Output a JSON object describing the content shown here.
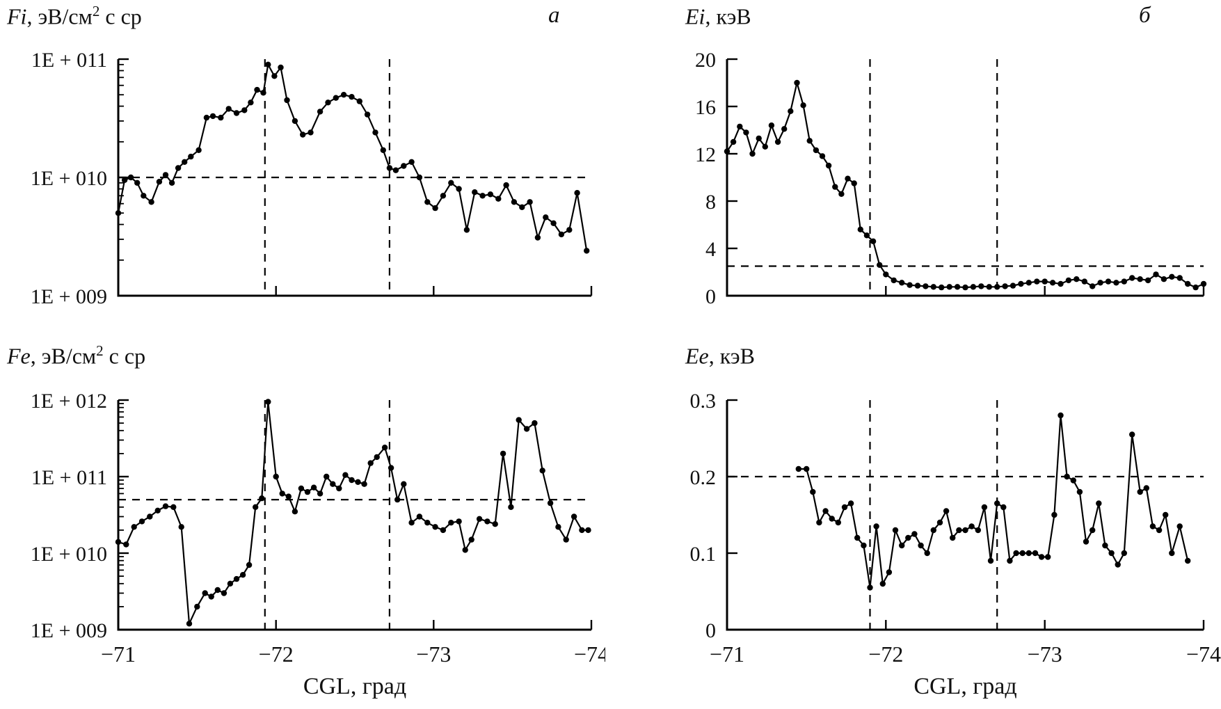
{
  "figure": {
    "background": "#ffffff",
    "line_color": "#000000"
  },
  "chart_data": [
    {
      "id": "fi",
      "type": "line",
      "title_var": "Fi",
      "title_unit": ", эВ/см",
      "title_sup": "2",
      "title_tail": " с ср",
      "panel_letter": "а",
      "yscale": "log",
      "ylim": [
        1000000000.0,
        100000000000.0
      ],
      "yticks": [
        1000000000.0,
        10000000000.0,
        100000000000.0
      ],
      "ytick_labels": [
        "1E + 009",
        "1E + 010",
        "1E + 011"
      ],
      "xlim": [
        -71,
        -74
      ],
      "xticks": [
        -71,
        -72,
        -73,
        -74
      ],
      "xtick_labels": [
        "−71",
        "−72",
        "−73",
        "−74"
      ],
      "show_xtick_labels": false,
      "xlabel": "",
      "hline": 10000000000.0,
      "vlines": [
        -71.93,
        -72.72
      ],
      "x": [
        -71.0,
        -71.04,
        -71.08,
        -71.12,
        -71.16,
        -71.21,
        -71.26,
        -71.3,
        -71.34,
        -71.38,
        -71.42,
        -71.46,
        -71.51,
        -71.56,
        -71.6,
        -71.65,
        -71.7,
        -71.75,
        -71.8,
        -71.84,
        -71.88,
        -71.92,
        -71.95,
        -71.99,
        -72.03,
        -72.07,
        -72.12,
        -72.17,
        -72.22,
        -72.28,
        -72.33,
        -72.38,
        -72.43,
        -72.48,
        -72.53,
        -72.58,
        -72.63,
        -72.68,
        -72.72,
        -72.76,
        -72.81,
        -72.86,
        -72.91,
        -72.96,
        -73.01,
        -73.06,
        -73.11,
        -73.16,
        -73.21,
        -73.26,
        -73.31,
        -73.36,
        -73.41,
        -73.46,
        -73.51,
        -73.56,
        -73.61,
        -73.66,
        -73.71,
        -73.76,
        -73.81,
        -73.86,
        -73.91,
        -73.97
      ],
      "y": [
        5000000000.0,
        9500000000.0,
        10000000000.0,
        9000000000.0,
        7000000000.0,
        6200000000.0,
        9200000000.0,
        10500000000.0,
        9000000000.0,
        12000000000.0,
        13500000000.0,
        15000000000.0,
        17000000000.0,
        32000000000.0,
        33000000000.0,
        32000000000.0,
        38000000000.0,
        35000000000.0,
        37000000000.0,
        43000000000.0,
        55000000000.0,
        52000000000.0,
        90000000000.0,
        72000000000.0,
        85000000000.0,
        45000000000.0,
        30000000000.0,
        23000000000.0,
        24000000000.0,
        36000000000.0,
        43000000000.0,
        47000000000.0,
        50000000000.0,
        48000000000.0,
        44000000000.0,
        34000000000.0,
        24000000000.0,
        17000000000.0,
        12000000000.0,
        11500000000.0,
        12500000000.0,
        13500000000.0,
        10000000000.0,
        6200000000.0,
        5500000000.0,
        7000000000.0,
        9000000000.0,
        8000000000.0,
        3600000000.0,
        7500000000.0,
        7000000000.0,
        7200000000.0,
        6600000000.0,
        8600000000.0,
        6200000000.0,
        5600000000.0,
        6200000000.0,
        3100000000.0,
        4600000000.0,
        4100000000.0,
        3300000000.0,
        3600000000.0,
        7400000000.0,
        2400000000.0
      ]
    },
    {
      "id": "ei",
      "type": "line",
      "title_var": "Ei",
      "title_unit": ", кэВ",
      "title_sup": "",
      "title_tail": "",
      "panel_letter": "б",
      "yscale": "linear",
      "ylim": [
        0,
        20
      ],
      "yticks": [
        0,
        4,
        8,
        12,
        16,
        20
      ],
      "ytick_labels": [
        "0",
        "4",
        "8",
        "12",
        "16",
        "20"
      ],
      "xlim": [
        -71,
        -74
      ],
      "xticks": [
        -71,
        -72,
        -73,
        -74
      ],
      "xtick_labels": [
        "−71",
        "−72",
        "−73",
        "−74"
      ],
      "show_xtick_labels": false,
      "xlabel": "",
      "hline": 2.5,
      "vlines": [
        -71.9,
        -72.7
      ],
      "x": [
        -71.0,
        -71.04,
        -71.08,
        -71.12,
        -71.16,
        -71.2,
        -71.24,
        -71.28,
        -71.32,
        -71.36,
        -71.4,
        -71.44,
        -71.48,
        -71.52,
        -71.56,
        -71.6,
        -71.64,
        -71.68,
        -71.72,
        -71.76,
        -71.8,
        -71.84,
        -71.88,
        -71.92,
        -71.96,
        -72.0,
        -72.05,
        -72.1,
        -72.15,
        -72.2,
        -72.25,
        -72.3,
        -72.35,
        -72.4,
        -72.45,
        -72.5,
        -72.55,
        -72.6,
        -72.65,
        -72.7,
        -72.75,
        -72.8,
        -72.85,
        -72.9,
        -72.95,
        -73.0,
        -73.05,
        -73.1,
        -73.15,
        -73.2,
        -73.25,
        -73.3,
        -73.35,
        -73.4,
        -73.45,
        -73.5,
        -73.55,
        -73.6,
        -73.65,
        -73.7,
        -73.75,
        -73.8,
        -73.85,
        -73.9,
        -73.95,
        -74.0
      ],
      "y": [
        12.2,
        13.0,
        14.3,
        13.8,
        12.0,
        13.3,
        12.6,
        14.4,
        13.0,
        14.1,
        15.6,
        18.0,
        16.1,
        13.1,
        12.3,
        11.8,
        11.0,
        9.2,
        8.6,
        9.9,
        9.5,
        5.6,
        5.1,
        4.6,
        2.6,
        1.8,
        1.3,
        1.1,
        0.9,
        0.85,
        0.8,
        0.75,
        0.7,
        0.75,
        0.75,
        0.7,
        0.75,
        0.8,
        0.75,
        0.75,
        0.8,
        0.85,
        1.0,
        1.1,
        1.2,
        1.2,
        1.1,
        1.0,
        1.3,
        1.4,
        1.2,
        0.8,
        1.1,
        1.2,
        1.1,
        1.2,
        1.5,
        1.4,
        1.3,
        1.8,
        1.4,
        1.6,
        1.5,
        1.0,
        0.7,
        1.0
      ]
    },
    {
      "id": "fe",
      "type": "line",
      "title_var": "Fe",
      "title_unit": ", эВ/см",
      "title_sup": "2",
      "title_tail": " с ср",
      "yscale": "log",
      "ylim": [
        1000000000.0,
        1000000000000.0
      ],
      "yticks": [
        1000000000.0,
        10000000000.0,
        100000000000.0,
        1000000000000.0
      ],
      "ytick_labels": [
        "1E + 009",
        "1E + 010",
        "1E + 011",
        "1E + 012"
      ],
      "xlim": [
        -71,
        -74
      ],
      "xticks": [
        -71,
        -72,
        -73,
        -74
      ],
      "xtick_labels": [
        "−71",
        "−72",
        "−73",
        "−74"
      ],
      "show_xtick_labels": true,
      "xlabel": "CGL, град",
      "hline": 50000000000.0,
      "vlines": [
        -71.93,
        -72.72
      ],
      "x": [
        -71.0,
        -71.05,
        -71.1,
        -71.15,
        -71.2,
        -71.25,
        -71.3,
        -71.35,
        -71.4,
        -71.45,
        -71.5,
        -71.55,
        -71.59,
        -71.63,
        -71.67,
        -71.71,
        -71.75,
        -71.79,
        -71.83,
        -71.87,
        -71.91,
        -71.95,
        -72.0,
        -72.04,
        -72.08,
        -72.12,
        -72.16,
        -72.2,
        -72.24,
        -72.28,
        -72.32,
        -72.36,
        -72.4,
        -72.44,
        -72.48,
        -72.52,
        -72.56,
        -72.6,
        -72.64,
        -72.69,
        -72.73,
        -72.77,
        -72.81,
        -72.86,
        -72.91,
        -72.96,
        -73.01,
        -73.06,
        -73.11,
        -73.16,
        -73.2,
        -73.24,
        -73.29,
        -73.34,
        -73.39,
        -73.44,
        -73.49,
        -73.54,
        -73.59,
        -73.64,
        -73.69,
        -73.74,
        -73.79,
        -73.84,
        -73.89,
        -73.94,
        -73.98
      ],
      "y": [
        14000000000.0,
        13000000000.0,
        22000000000.0,
        26000000000.0,
        30000000000.0,
        36000000000.0,
        41000000000.0,
        40000000000.0,
        22000000000.0,
        1200000000.0,
        2000000000.0,
        3000000000.0,
        2700000000.0,
        3300000000.0,
        3000000000.0,
        4000000000.0,
        4600000000.0,
        5200000000.0,
        7000000000.0,
        40000000000.0,
        52000000000.0,
        950000000000.0,
        100000000000.0,
        60000000000.0,
        55000000000.0,
        35000000000.0,
        70000000000.0,
        63000000000.0,
        72000000000.0,
        60000000000.0,
        100000000000.0,
        80000000000.0,
        70000000000.0,
        105000000000.0,
        90000000000.0,
        85000000000.0,
        80000000000.0,
        150000000000.0,
        180000000000.0,
        240000000000.0,
        130000000000.0,
        50000000000.0,
        80000000000.0,
        25000000000.0,
        30000000000.0,
        25000000000.0,
        22000000000.0,
        20000000000.0,
        25000000000.0,
        26000000000.0,
        11000000000.0,
        15000000000.0,
        28000000000.0,
        26000000000.0,
        24000000000.0,
        200000000000.0,
        40000000000.0,
        550000000000.0,
        420000000000.0,
        500000000000.0,
        120000000000.0,
        45000000000.0,
        22000000000.0,
        15000000000.0,
        30000000000.0,
        20000000000.0,
        20000000000.0
      ]
    },
    {
      "id": "ee",
      "type": "line",
      "title_var": "Ee",
      "title_unit": ", кэВ",
      "title_sup": "",
      "title_tail": "",
      "yscale": "linear",
      "ylim": [
        0,
        0.3
      ],
      "yticks": [
        0,
        0.1,
        0.2,
        0.3
      ],
      "ytick_labels": [
        "0",
        "0.1",
        "0.2",
        "0.3"
      ],
      "xlim": [
        -71,
        -74
      ],
      "xticks": [
        -71,
        -72,
        -73,
        -74
      ],
      "xtick_labels": [
        "−71",
        "−72",
        "−73",
        "−74"
      ],
      "show_xtick_labels": true,
      "xlabel": "CGL, град",
      "hline": 0.2,
      "vlines": [
        -71.9,
        -72.7
      ],
      "x": [
        -71.45,
        -71.5,
        -71.54,
        -71.58,
        -71.62,
        -71.66,
        -71.7,
        -71.74,
        -71.78,
        -71.82,
        -71.86,
        -71.9,
        -71.94,
        -71.98,
        -72.02,
        -72.06,
        -72.1,
        -72.14,
        -72.18,
        -72.22,
        -72.26,
        -72.3,
        -72.34,
        -72.38,
        -72.42,
        -72.46,
        -72.5,
        -72.54,
        -72.58,
        -72.62,
        -72.66,
        -72.7,
        -72.74,
        -72.78,
        -72.82,
        -72.86,
        -72.9,
        -72.94,
        -72.98,
        -73.02,
        -73.06,
        -73.1,
        -73.14,
        -73.18,
        -73.22,
        -73.26,
        -73.3,
        -73.34,
        -73.38,
        -73.42,
        -73.46,
        -73.5,
        -73.55,
        -73.6,
        -73.64,
        -73.68,
        -73.72,
        -73.76,
        -73.8,
        -73.85,
        -73.9
      ],
      "y": [
        0.21,
        0.21,
        0.18,
        0.14,
        0.155,
        0.145,
        0.14,
        0.16,
        0.165,
        0.12,
        0.11,
        0.055,
        0.135,
        0.06,
        0.075,
        0.13,
        0.11,
        0.12,
        0.125,
        0.11,
        0.1,
        0.13,
        0.14,
        0.155,
        0.12,
        0.13,
        0.13,
        0.135,
        0.13,
        0.16,
        0.09,
        0.165,
        0.16,
        0.09,
        0.1,
        0.1,
        0.1,
        0.1,
        0.095,
        0.095,
        0.15,
        0.28,
        0.2,
        0.195,
        0.18,
        0.115,
        0.13,
        0.165,
        0.11,
        0.1,
        0.085,
        0.1,
        0.255,
        0.18,
        0.185,
        0.135,
        0.13,
        0.15,
        0.1,
        0.135,
        0.09
      ]
    }
  ]
}
